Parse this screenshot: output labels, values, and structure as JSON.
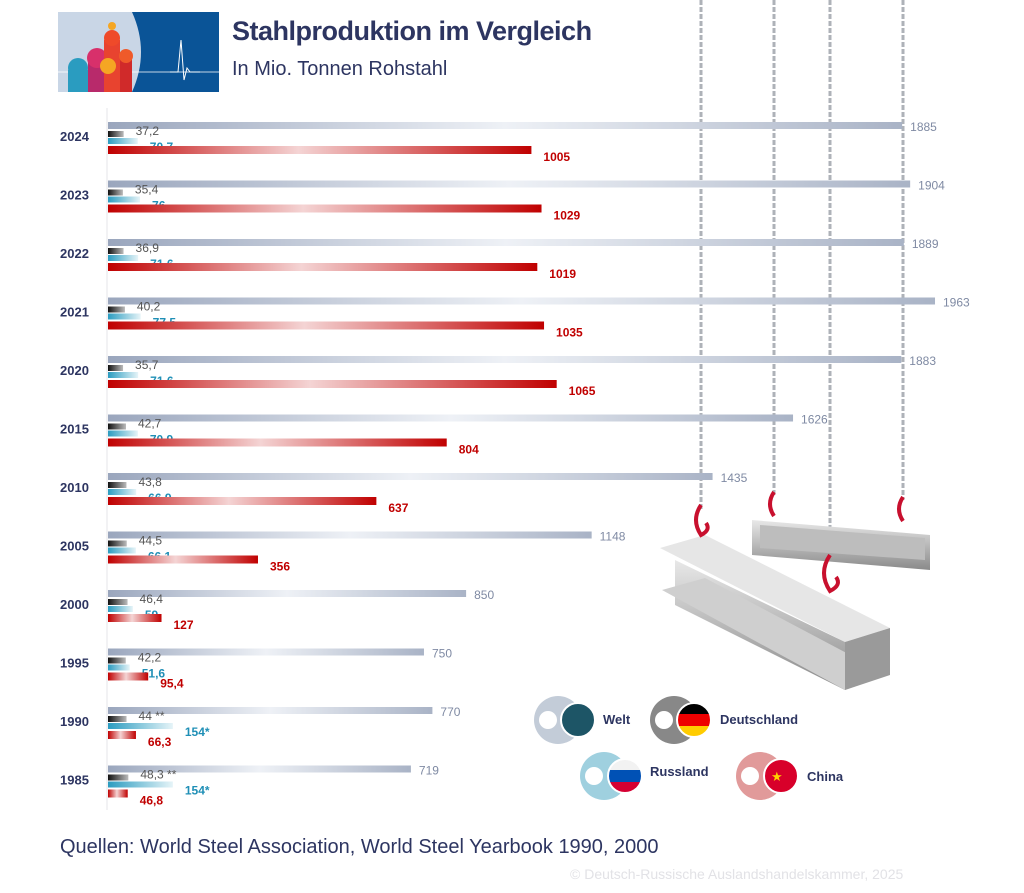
{
  "header": {
    "title": "Stahlproduktion im Vergleich",
    "subtitle": "In Mio. Tonnen Rohstahl"
  },
  "footer": {
    "source": "Quellen: World Steel Association, World Steel Yearbook 1990, 2000",
    "copyright": "© Deutsch-Russische Auslandshandelskammer, 2025"
  },
  "colors": {
    "title": "#2d3561",
    "welt": "#8e9bb3",
    "deutschland": "#222222",
    "russland": "#2b9cc0",
    "china": "#c00000"
  },
  "legend": [
    {
      "key": "welt",
      "label": "Welt",
      "icon": "globe-icon"
    },
    {
      "key": "deutschland",
      "label": "Deutschland",
      "icon": "germany-flag-icon"
    },
    {
      "key": "russland",
      "label": "Russland",
      "icon": "russia-flag-icon"
    },
    {
      "key": "china",
      "label": "China",
      "icon": "china-flag-icon"
    }
  ],
  "chart_data": {
    "type": "bar",
    "orientation": "horizontal",
    "title": "Stahlproduktion im Vergleich",
    "subtitle": "In Mio. Tonnen Rohstahl",
    "categories": [
      "2024",
      "2023",
      "2022",
      "2021",
      "2020",
      "2015",
      "2010",
      "2005",
      "2000",
      "1995",
      "1990",
      "1985"
    ],
    "series": [
      {
        "name": "Welt",
        "key": "welt",
        "values": [
          1885,
          1904,
          1889,
          1963,
          1883,
          1626,
          1435,
          1148,
          850,
          750,
          770,
          719
        ],
        "labels": [
          "1885",
          "1904",
          "1889",
          "1963",
          "1883",
          "1626",
          "1435",
          "1148",
          "850",
          "750",
          "770",
          "719"
        ]
      },
      {
        "name": "Deutschland",
        "key": "deutschland",
        "values": [
          37.2,
          35.4,
          36.9,
          40.2,
          35.7,
          42.7,
          43.8,
          44.5,
          46.4,
          42.2,
          44,
          48.3
        ],
        "labels": [
          "37,2",
          "35,4",
          "36,9",
          "40,2",
          "35,7",
          "42,7",
          "43,8",
          "44,5",
          "46,4",
          "42,2",
          "44 **",
          "48,3 **"
        ]
      },
      {
        "name": "Russland",
        "key": "russland",
        "values": [
          70.7,
          76,
          71.6,
          77.5,
          71.6,
          70.9,
          66.9,
          66.1,
          59,
          51.6,
          154,
          154
        ],
        "labels": [
          "70,7",
          "76",
          "71,6",
          "77,5",
          "71,6",
          "70,9",
          "66,9",
          "66,1",
          "59",
          "51,6",
          "154*",
          "154*"
        ]
      },
      {
        "name": "China",
        "key": "china",
        "values": [
          1005,
          1029,
          1019,
          1035,
          1065,
          804,
          637,
          356,
          127,
          95.4,
          66.3,
          46.8
        ],
        "labels": [
          "1005",
          "1029",
          "1019",
          "1035",
          "1065",
          "804",
          "637",
          "356",
          "127",
          "95,4",
          "66,3",
          "46,8"
        ]
      }
    ],
    "xlim": [
      0,
      2000
    ],
    "grid": false,
    "legend_position": "bottom-right"
  }
}
